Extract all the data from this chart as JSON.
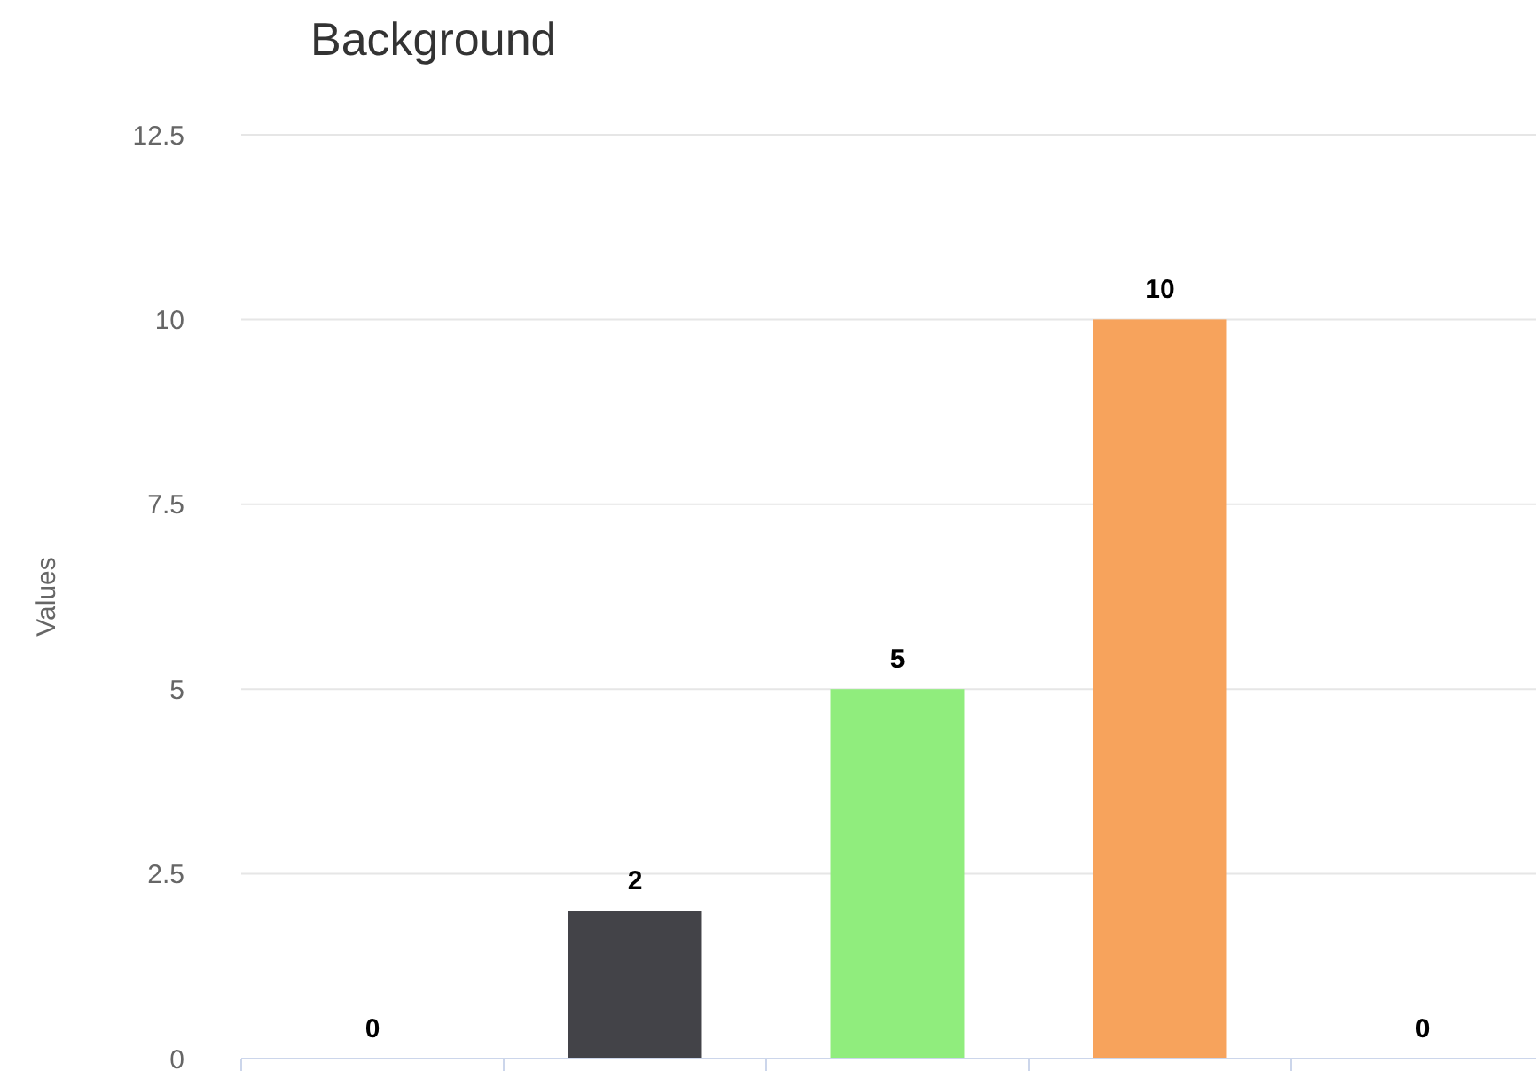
{
  "chart_data": {
    "type": "bar",
    "title": "Background",
    "ylabel": "Values",
    "categories": [
      null,
      null,
      null,
      null,
      null
    ],
    "values": [
      0,
      2,
      5,
      10,
      0
    ],
    "colors": [
      "#7cb5ec",
      "#434348",
      "#90ed7d",
      "#f7a35c",
      "#8085e9"
    ],
    "ylim": [
      0,
      12.5
    ],
    "yticks": [
      0,
      2.5,
      5,
      7.5,
      10,
      12.5
    ],
    "grid": "y",
    "data_labels": true
  }
}
